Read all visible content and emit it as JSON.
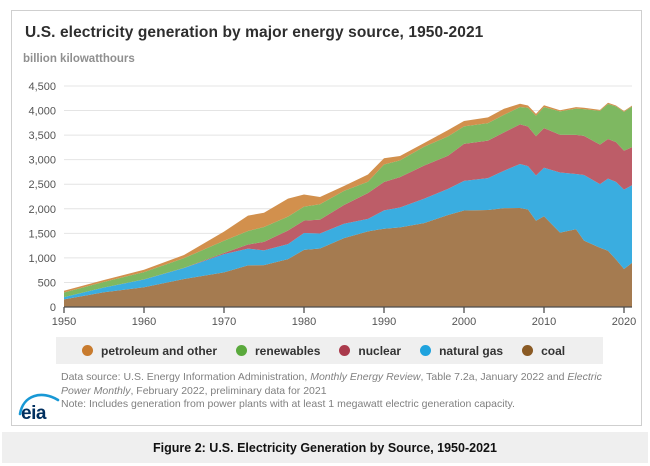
{
  "header": {
    "title": "U.S. electricity generation by major energy source, 1950-2021",
    "units_label": "billion kilowatthours"
  },
  "legend": {
    "items": [
      {
        "label": "petroleum and other",
        "color": "#c87b2e"
      },
      {
        "label": "renewables",
        "color": "#5aa93c"
      },
      {
        "label": "nuclear",
        "color": "#aa3a4c"
      },
      {
        "label": "natural gas",
        "color": "#1fa3de"
      },
      {
        "label": "coal",
        "color": "#8a5a24"
      }
    ]
  },
  "footer": {
    "logo_text": "eia",
    "line1_prefix": "Data source: U.S. Energy Information Administration, ",
    "line1_italic1": "Monthly Energy Review",
    "line1_mid": ", Table 7.2a, January 2022 and ",
    "line1_italic2": "Electric",
    "line2_italic": "Power Monthly",
    "line2_rest": ", February 2022, preliminary data for 2021",
    "note_line": "Note: Includes generation from power plants with at least 1 megawatt electric generation capacity."
  },
  "caption": {
    "text": "Figure 2: U.S. Electricity Generation by Source, 1950-2021"
  },
  "colors": {
    "grid": "#e4e4e4",
    "axis": "#4d4d4d",
    "tick_label": "#555555",
    "legend_bg": "#efefef",
    "caption_bg": "#efefef",
    "card_border": "#cfcfcf",
    "logo_navy": "#002f5f",
    "logo_blue": "#1898d5"
  },
  "chart_data": {
    "type": "area",
    "stacked": true,
    "title": "U.S. electricity generation by major energy source, 1950-2021",
    "xlabel": "",
    "ylabel": "billion kilowatthours",
    "ylim": [
      0,
      4500
    ],
    "x_range": [
      1950,
      2021
    ],
    "grid": "horizontal",
    "legend_position": "bottom",
    "ytick_values": [
      0,
      500,
      1000,
      1500,
      2000,
      2500,
      3000,
      3500,
      4000,
      4500
    ],
    "ytick_labels": [
      "0",
      "500",
      "1,000",
      "1,500",
      "2,000",
      "2,500",
      "3,000",
      "3,500",
      "4,000",
      "4,500"
    ],
    "xtick_values": [
      1950,
      1960,
      1970,
      1980,
      1990,
      2000,
      2010,
      2020
    ],
    "xtick_labels": [
      "1950",
      "1960",
      "1970",
      "1980",
      "1990",
      "2000",
      "2010",
      "2020"
    ],
    "years": [
      1950,
      1955,
      1960,
      1965,
      1970,
      1973,
      1975,
      1978,
      1980,
      1982,
      1985,
      1988,
      1990,
      1992,
      1995,
      1998,
      2000,
      2003,
      2005,
      2007,
      2008,
      2009,
      2010,
      2012,
      2014,
      2015,
      2017,
      2018,
      2019,
      2020,
      2021
    ],
    "series": [
      {
        "name": "coal",
        "color": "#a57b50",
        "values": [
          155,
          301,
          403,
          571,
          704,
          848,
          853,
          976,
          1162,
          1192,
          1402,
          1541,
          1594,
          1621,
          1709,
          1874,
          1966,
          1974,
          2013,
          2016,
          1986,
          1756,
          1847,
          1514,
          1582,
          1352,
          1206,
          1146,
          966,
          774,
          899
        ]
      },
      {
        "name": "natural gas",
        "color": "#3aade0",
        "values": [
          45,
          95,
          158,
          222,
          373,
          341,
          300,
          305,
          346,
          305,
          292,
          253,
          373,
          404,
          496,
          531,
          601,
          650,
          761,
          897,
          883,
          921,
          988,
          1225,
          1127,
          1335,
          1296,
          1468,
          1582,
          1617,
          1579
        ]
      },
      {
        "name": "nuclear",
        "color": "#bd5d68",
        "values": [
          0,
          0,
          1,
          4,
          22,
          83,
          173,
          276,
          251,
          283,
          384,
          527,
          577,
          619,
          673,
          674,
          754,
          764,
          782,
          806,
          806,
          799,
          807,
          769,
          797,
          797,
          805,
          807,
          809,
          790,
          778
        ]
      },
      {
        "name": "renewables",
        "color": "#7eb861",
        "values": [
          96,
          116,
          148,
          197,
          251,
          275,
          303,
          284,
          285,
          312,
          287,
          229,
          357,
          342,
          385,
          394,
          356,
          355,
          358,
          353,
          382,
          417,
          428,
          475,
          534,
          546,
          687,
          713,
          728,
          792,
          826
        ]
      },
      {
        "name": "petroleum and other",
        "color": "#d2904d",
        "values": [
          34,
          38,
          48,
          65,
          184,
          314,
          289,
          365,
          246,
          147,
          100,
          149,
          127,
          89,
          75,
          129,
          111,
          119,
          122,
          66,
          46,
          39,
          37,
          23,
          30,
          28,
          21,
          25,
          19,
          17,
          19
        ]
      }
    ]
  }
}
